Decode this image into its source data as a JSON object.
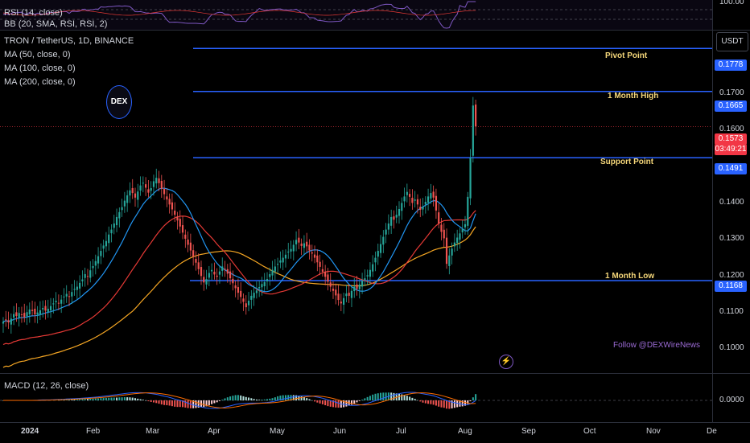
{
  "rsi": {
    "title": "RSI (14, close)",
    "bb_title": "BB (20, SMA, RSI, RSI, 2)",
    "scale_label": "100.00"
  },
  "header": {
    "symbol_line": "TRON / TetherUS, 1D, BINANCE",
    "ma50": "MA (50, close, 0)",
    "ma100": "MA (100, close, 0)",
    "ma200": "MA (200, close, 0)",
    "unit": "USDT"
  },
  "logo": {
    "text": "DEX"
  },
  "price_scale": {
    "ticks": [
      "0.1700",
      "0.1600",
      "0.1400",
      "0.1300",
      "0.1200",
      "0.1100",
      "0.1000"
    ]
  },
  "levels": [
    {
      "name": "Pivot Point",
      "value": "0.1778"
    },
    {
      "name": "1 Month High",
      "value": "0.1665"
    },
    {
      "name": "Support Point",
      "value": "0.1491"
    },
    {
      "name": "1 Month Low",
      "value": "0.1168"
    }
  ],
  "current_price": {
    "value": "0.1573",
    "countdown": "03:49:21"
  },
  "watermark": {
    "follow_text": "Follow @DEXWireNews"
  },
  "macd": {
    "title": "MACD (12, 26, close)",
    "scale_label": "0.0000"
  },
  "time_axis": {
    "labels": [
      "2024",
      "Feb",
      "Mar",
      "Apr",
      "May",
      "Jun",
      "Jul",
      "Aug",
      "Sep",
      "Oct",
      "Nov",
      "De"
    ]
  },
  "colors": {
    "up": "#26a69a",
    "down": "#ef5350",
    "level_line": "#2962ff",
    "ma50": "#2196f3",
    "ma100": "#e53935",
    "ma200": "#f5a623",
    "price_tag": "#f23645"
  },
  "chart_data": {
    "type": "candlestick",
    "title": "TRON / TetherUS, 1D, BINANCE",
    "ylim": [
      0.0925,
      0.1825
    ],
    "x_labels": [
      "2024",
      "Feb",
      "Mar",
      "Apr",
      "May",
      "Jun",
      "Jul",
      "Aug",
      "Sep",
      "Oct",
      "Nov",
      "De"
    ],
    "close_series": [
      0.106,
      0.1065,
      0.1058,
      0.1068,
      0.108,
      0.1075,
      0.1083,
      0.1078,
      0.1072,
      0.1085,
      0.1092,
      0.1088,
      0.1079,
      0.1084,
      0.109,
      0.1096,
      0.1089,
      0.1094,
      0.1101,
      0.1108,
      0.1115,
      0.1109,
      0.1118,
      0.1126,
      0.1133,
      0.1125,
      0.1138,
      0.1146,
      0.1152,
      0.1162,
      0.1171,
      0.1185,
      0.1178,
      0.1195,
      0.1206,
      0.1219,
      0.1232,
      0.1246,
      0.126,
      0.1272,
      0.1289,
      0.1302,
      0.1318,
      0.1335,
      0.1348,
      0.1361,
      0.1378,
      0.1392,
      0.1405,
      0.1398,
      0.1386,
      0.1402,
      0.1418,
      0.1425,
      0.1412,
      0.1399,
      0.1411,
      0.1429,
      0.1438,
      0.1424,
      0.1409,
      0.1395,
      0.1381,
      0.1368,
      0.1355,
      0.1341,
      0.1326,
      0.131,
      0.1294,
      0.1278,
      0.1262,
      0.1247,
      0.1231,
      0.1215,
      0.1198,
      0.118,
      0.1163,
      0.1172,
      0.1188,
      0.1196,
      0.1184,
      0.1178,
      0.1192,
      0.1205,
      0.1198,
      0.1186,
      0.1174,
      0.1161,
      0.1148,
      0.1136,
      0.1125,
      0.1112,
      0.1098,
      0.1115,
      0.1128,
      0.1136,
      0.1142,
      0.1151,
      0.1159,
      0.1164,
      0.1172,
      0.1185,
      0.1196,
      0.1205,
      0.1212,
      0.1221,
      0.1228,
      0.1236,
      0.1244,
      0.1251,
      0.1262,
      0.1275,
      0.1268,
      0.1259,
      0.1266,
      0.1258,
      0.1247,
      0.1239,
      0.1228,
      0.1216,
      0.1204,
      0.1191,
      0.1178,
      0.1165,
      0.1152,
      0.1141,
      0.1129,
      0.1117,
      0.1108,
      0.1122,
      0.1134,
      0.1128,
      0.1141,
      0.1152,
      0.1146,
      0.1158,
      0.1167,
      0.1174,
      0.1182,
      0.1196,
      0.1211,
      0.1228,
      0.1246,
      0.1264,
      0.1283,
      0.1302,
      0.1318,
      0.1335,
      0.1328,
      0.1341,
      0.1356,
      0.1372,
      0.1389,
      0.1401,
      0.1388,
      0.1372,
      0.1381,
      0.1368,
      0.1354,
      0.1362,
      0.1375,
      0.1389,
      0.1398,
      0.1386,
      0.1352,
      0.1318,
      0.1296,
      0.1279,
      0.1212,
      0.1234,
      0.1252,
      0.1268,
      0.1281,
      0.1292,
      0.1303,
      0.1316,
      0.1388,
      0.1491,
      0.1628,
      0.1573
    ]
  }
}
